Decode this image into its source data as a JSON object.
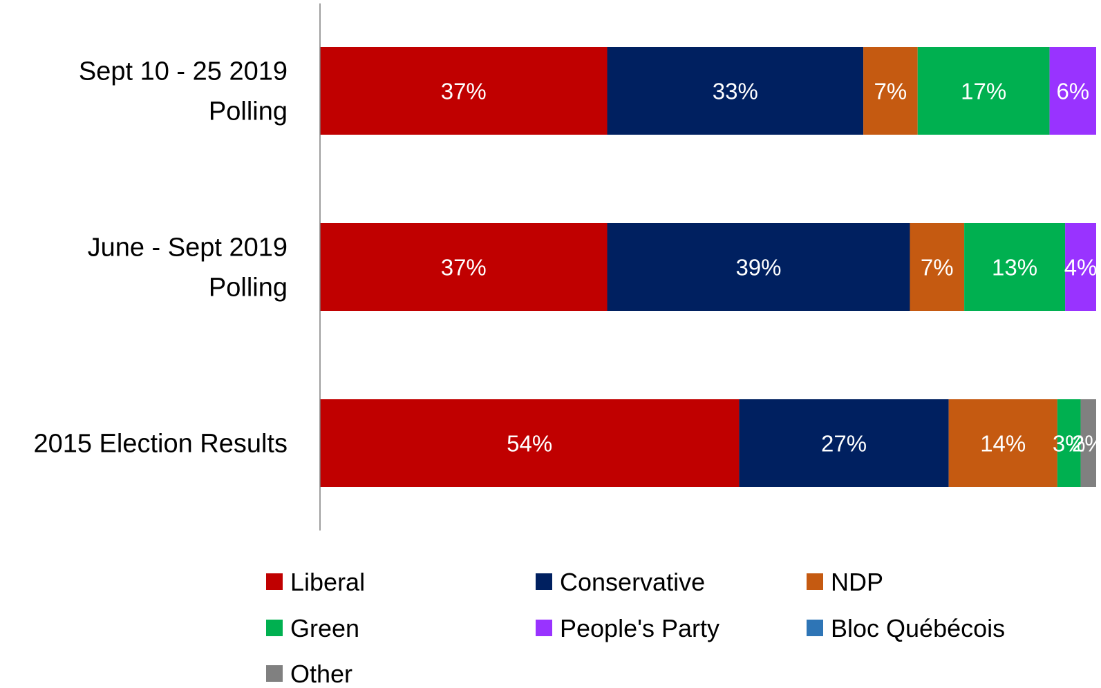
{
  "chart_data": {
    "type": "bar",
    "orientation": "horizontal",
    "stacked": true,
    "categories": [
      [
        "Sept 10 - 25 2019",
        "Polling"
      ],
      [
        "June - Sept 2019",
        "Polling"
      ],
      [
        "2015 Election Results"
      ]
    ],
    "series": [
      {
        "name": "Liberal",
        "color": "#C00000",
        "values": [
          37,
          37,
          54
        ],
        "labels": [
          "37%",
          "37%",
          "54%"
        ]
      },
      {
        "name": "Conservative",
        "color": "#002060",
        "values": [
          33,
          39,
          27
        ],
        "labels": [
          "33%",
          "39%",
          "27%"
        ]
      },
      {
        "name": "NDP",
        "color": "#C55A11",
        "values": [
          7,
          7,
          14
        ],
        "labels": [
          "7%",
          "7%",
          "14%"
        ]
      },
      {
        "name": "Green",
        "color": "#00B050",
        "values": [
          17,
          13,
          3
        ],
        "labels": [
          "17%",
          "13%",
          "3%"
        ]
      },
      {
        "name": "People's Party",
        "color": "#9933FF",
        "values": [
          6,
          4,
          0
        ],
        "labels": [
          "6%",
          "4%",
          ""
        ]
      },
      {
        "name": "Bloc Québécois",
        "color": "#2E75B6",
        "values": [
          0,
          0,
          0
        ],
        "labels": [
          "",
          "",
          ""
        ]
      },
      {
        "name": "Other",
        "color": "#808080",
        "values": [
          0,
          0,
          2
        ],
        "labels": [
          "",
          "",
          "2%"
        ]
      }
    ],
    "xlim": [
      0,
      100
    ],
    "grid": false,
    "legend_position": "bottom"
  }
}
